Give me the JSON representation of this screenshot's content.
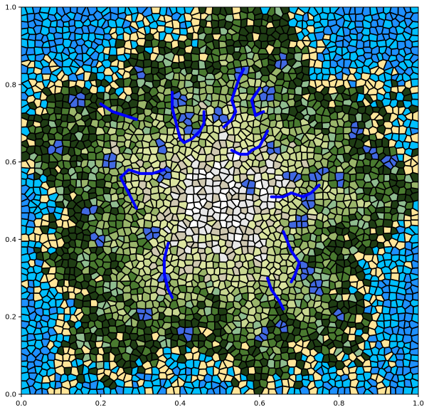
{
  "figure": {
    "type": "voronoi terrain map",
    "x_axis": {
      "range": [
        0.0,
        1.0
      ],
      "tick_labels": [
        "0.0",
        "0.2",
        "0.4",
        "0.6",
        "0.8",
        "1.0"
      ]
    },
    "y_axis": {
      "range": [
        0.0,
        1.0
      ],
      "tick_labels": [
        "0.0",
        "0.2",
        "0.4",
        "0.6",
        "0.8",
        "1.0"
      ]
    },
    "grid": false,
    "cell_outline_color": "#000000",
    "terrain_palette": {
      "deep_water": "#1e90ff",
      "shallow_water": "#00bfff",
      "sand": "#ffe599",
      "lake": "#4169e1",
      "dark_forest": "#1f3d14",
      "forest": "#4a7a30",
      "sage": "#8fbc8f",
      "grassland": "#9ab56a",
      "light_grass": "#c8d690",
      "pale_meadow": "#dbe4a0",
      "rock": "#cfc8b0",
      "snow": "#e8e8e8",
      "peak": "#ffffff",
      "river": "#0000ff"
    }
  },
  "chart_data": {
    "type": "map",
    "xlim": [
      0.0,
      1.0
    ],
    "ylim": [
      0.0,
      1.0
    ],
    "rivers": [
      [
        [
          0.46,
          0.73
        ],
        [
          0.46,
          0.7
        ],
        [
          0.45,
          0.68
        ],
        [
          0.43,
          0.66
        ],
        [
          0.41,
          0.65
        ],
        [
          0.4,
          0.66
        ],
        [
          0.39,
          0.7
        ],
        [
          0.38,
          0.74
        ],
        [
          0.38,
          0.78
        ]
      ],
      [
        [
          0.51,
          0.69
        ],
        [
          0.53,
          0.71
        ],
        [
          0.54,
          0.73
        ],
        [
          0.53,
          0.76
        ],
        [
          0.54,
          0.79
        ],
        [
          0.55,
          0.82
        ],
        [
          0.56,
          0.84
        ]
      ],
      [
        [
          0.6,
          0.79
        ],
        [
          0.58,
          0.76
        ],
        [
          0.59,
          0.72
        ],
        [
          0.61,
          0.73
        ]
      ],
      [
        [
          0.53,
          0.63
        ],
        [
          0.55,
          0.62
        ],
        [
          0.57,
          0.62
        ],
        [
          0.58,
          0.63
        ],
        [
          0.6,
          0.64
        ],
        [
          0.61,
          0.66
        ],
        [
          0.62,
          0.68
        ]
      ],
      [
        [
          0.63,
          0.51
        ],
        [
          0.66,
          0.51
        ],
        [
          0.68,
          0.52
        ],
        [
          0.71,
          0.51
        ],
        [
          0.73,
          0.52
        ],
        [
          0.75,
          0.54
        ]
      ],
      [
        [
          0.37,
          0.39
        ],
        [
          0.36,
          0.35
        ],
        [
          0.36,
          0.31
        ],
        [
          0.37,
          0.27
        ],
        [
          0.38,
          0.25
        ]
      ],
      [
        [
          0.66,
          0.42
        ],
        [
          0.68,
          0.37
        ],
        [
          0.7,
          0.34
        ],
        [
          0.69,
          0.31
        ],
        [
          0.68,
          0.29
        ]
      ],
      [
        [
          0.62,
          0.3
        ],
        [
          0.63,
          0.27
        ],
        [
          0.65,
          0.24
        ],
        [
          0.66,
          0.22
        ]
      ],
      [
        [
          0.2,
          0.75
        ],
        [
          0.23,
          0.73
        ],
        [
          0.26,
          0.72
        ],
        [
          0.29,
          0.71
        ]
      ],
      [
        [
          0.36,
          0.58
        ],
        [
          0.33,
          0.57
        ],
        [
          0.3,
          0.57
        ],
        [
          0.27,
          0.58
        ],
        [
          0.25,
          0.56
        ],
        [
          0.27,
          0.52
        ],
        [
          0.29,
          0.48
        ]
      ]
    ],
    "lakes": [
      [
        0.4,
        0.76
      ],
      [
        0.42,
        0.71
      ],
      [
        0.35,
        0.64
      ],
      [
        0.36,
        0.57
      ],
      [
        0.43,
        0.68
      ],
      [
        0.5,
        0.72
      ],
      [
        0.55,
        0.83
      ],
      [
        0.62,
        0.78
      ],
      [
        0.63,
        0.63
      ],
      [
        0.68,
        0.56
      ],
      [
        0.75,
        0.57
      ],
      [
        0.72,
        0.5
      ],
      [
        0.8,
        0.55
      ],
      [
        0.84,
        0.68
      ],
      [
        0.88,
        0.63
      ],
      [
        0.93,
        0.6
      ],
      [
        0.92,
        0.4
      ],
      [
        0.95,
        0.35
      ],
      [
        0.7,
        0.44
      ],
      [
        0.72,
        0.32
      ],
      [
        0.75,
        0.28
      ],
      [
        0.8,
        0.21
      ],
      [
        0.66,
        0.17
      ],
      [
        0.61,
        0.15
      ],
      [
        0.5,
        0.1
      ],
      [
        0.41,
        0.16
      ],
      [
        0.31,
        0.21
      ],
      [
        0.36,
        0.31
      ],
      [
        0.33,
        0.41
      ],
      [
        0.19,
        0.4
      ],
      [
        0.17,
        0.47
      ],
      [
        0.09,
        0.64
      ],
      [
        0.14,
        0.76
      ],
      [
        0.24,
        0.81
      ],
      [
        0.3,
        0.83
      ],
      [
        0.66,
        0.86
      ],
      [
        0.58,
        0.54
      ],
      [
        0.22,
        0.6
      ]
    ]
  }
}
